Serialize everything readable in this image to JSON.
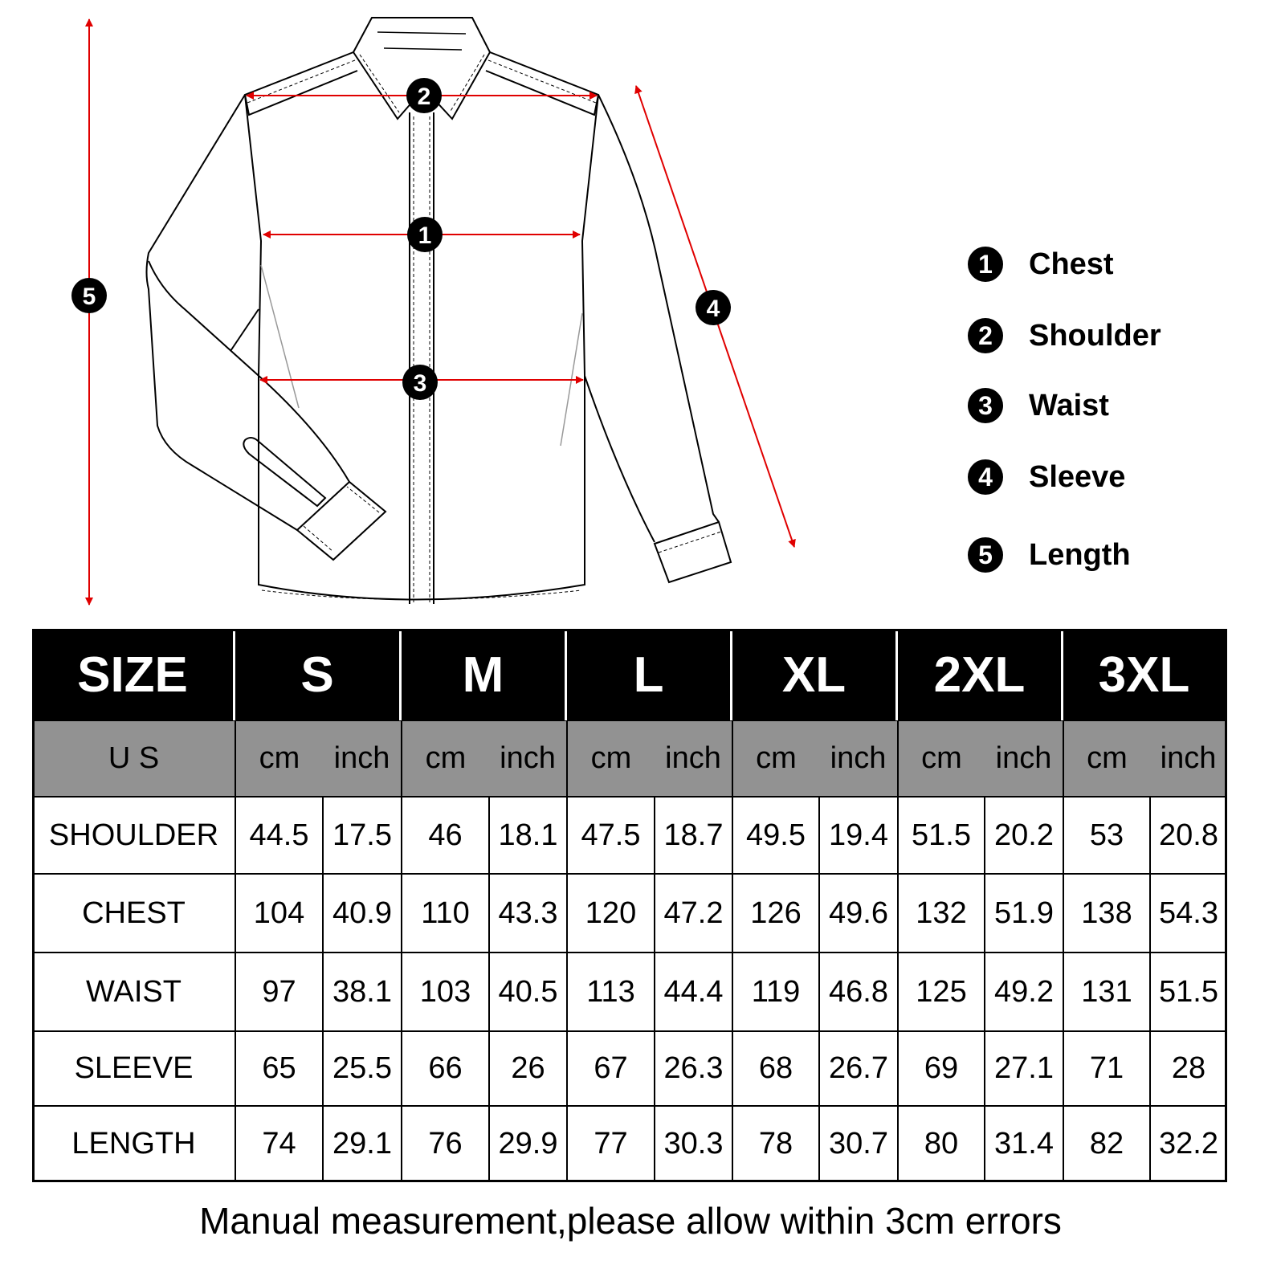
{
  "diagram": {
    "markers": [
      "1",
      "2",
      "3",
      "4",
      "5"
    ],
    "arrow_color": "#e00000"
  },
  "legend": [
    {
      "num": "1",
      "label": "Chest"
    },
    {
      "num": "2",
      "label": "Shoulder"
    },
    {
      "num": "3",
      "label": "Waist"
    },
    {
      "num": "4",
      "label": "Sleeve"
    },
    {
      "num": "5",
      "label": "Length"
    }
  ],
  "table": {
    "size_label": "SIZE",
    "sizes": [
      "S",
      "M",
      "L",
      "XL",
      "2XL",
      "3XL"
    ],
    "region_label": "U S",
    "unit_cm": "cm",
    "unit_inch": "inch",
    "rows": [
      {
        "label": "SHOULDER",
        "values": [
          "44.5",
          "17.5",
          "46",
          "18.1",
          "47.5",
          "18.7",
          "49.5",
          "19.4",
          "51.5",
          "20.2",
          "53",
          "20.8"
        ]
      },
      {
        "label": "CHEST",
        "values": [
          "104",
          "40.9",
          "110",
          "43.3",
          "120",
          "47.2",
          "126",
          "49.6",
          "132",
          "51.9",
          "138",
          "54.3"
        ]
      },
      {
        "label": "WAIST",
        "values": [
          "97",
          "38.1",
          "103",
          "40.5",
          "113",
          "44.4",
          "119",
          "46.8",
          "125",
          "49.2",
          "131",
          "51.5"
        ]
      },
      {
        "label": "SLEEVE",
        "values": [
          "65",
          "25.5",
          "66",
          "26",
          "67",
          "26.3",
          "68",
          "26.7",
          "69",
          "27.1",
          "71",
          "28"
        ]
      },
      {
        "label": "LENGTH",
        "values": [
          "74",
          "29.1",
          "76",
          "29.9",
          "77",
          "30.3",
          "78",
          "30.7",
          "80",
          "31.4",
          "82",
          "32.2"
        ]
      }
    ]
  },
  "footer": "Manual measurement,please allow within 3cm errors"
}
